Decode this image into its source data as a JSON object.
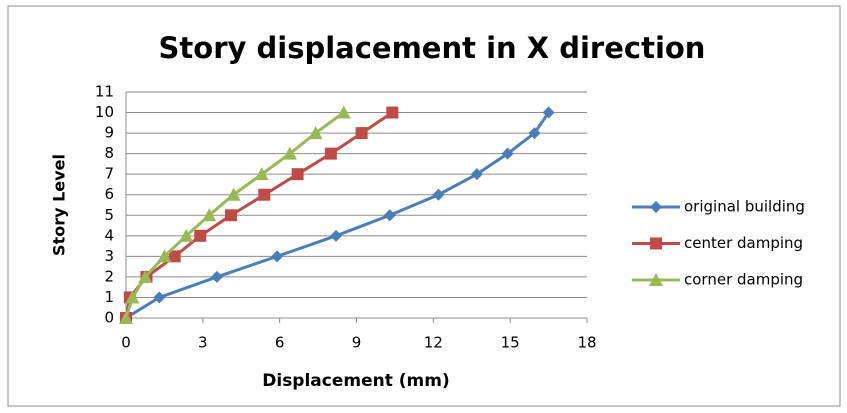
{
  "chart_data": {
    "type": "line",
    "title": "Story displacement in X direction",
    "x_label": "Displacement  (mm)",
    "y_label": "Story Level",
    "xlim": [
      0,
      18
    ],
    "xticks": [
      0,
      3,
      6,
      9,
      12,
      15,
      18
    ],
    "ylim": [
      0,
      11
    ],
    "yticks": [
      0,
      1,
      2,
      3,
      4,
      5,
      6,
      7,
      8,
      9,
      10,
      11
    ],
    "grid": true,
    "legend": "right",
    "series": [
      {
        "name": "original building",
        "color": "#4a7ebb",
        "marker": "diamond",
        "x": [
          0,
          1.3,
          3.55,
          5.9,
          8.2,
          10.3,
          12.2,
          13.7,
          14.9,
          15.95,
          16.5
        ],
        "values": [
          0,
          1,
          2,
          3,
          4,
          5,
          6,
          7,
          8,
          9,
          10
        ]
      },
      {
        "name": "center damping",
        "color": "#be4b48",
        "marker": "square",
        "x": [
          0,
          0.15,
          0.8,
          1.9,
          2.9,
          4.1,
          5.4,
          6.7,
          8.0,
          9.2,
          10.4
        ],
        "values": [
          0,
          1,
          2,
          3,
          4,
          5,
          6,
          7,
          8,
          9,
          10
        ]
      },
      {
        "name": "corner damping",
        "color": "#98b954",
        "marker": "triangle",
        "x": [
          0,
          0.25,
          0.75,
          1.5,
          2.35,
          3.25,
          4.2,
          5.3,
          6.4,
          7.4,
          8.5
        ],
        "values": [
          0,
          1,
          2,
          3,
          4,
          5,
          6,
          7,
          8,
          9,
          10
        ]
      }
    ]
  }
}
